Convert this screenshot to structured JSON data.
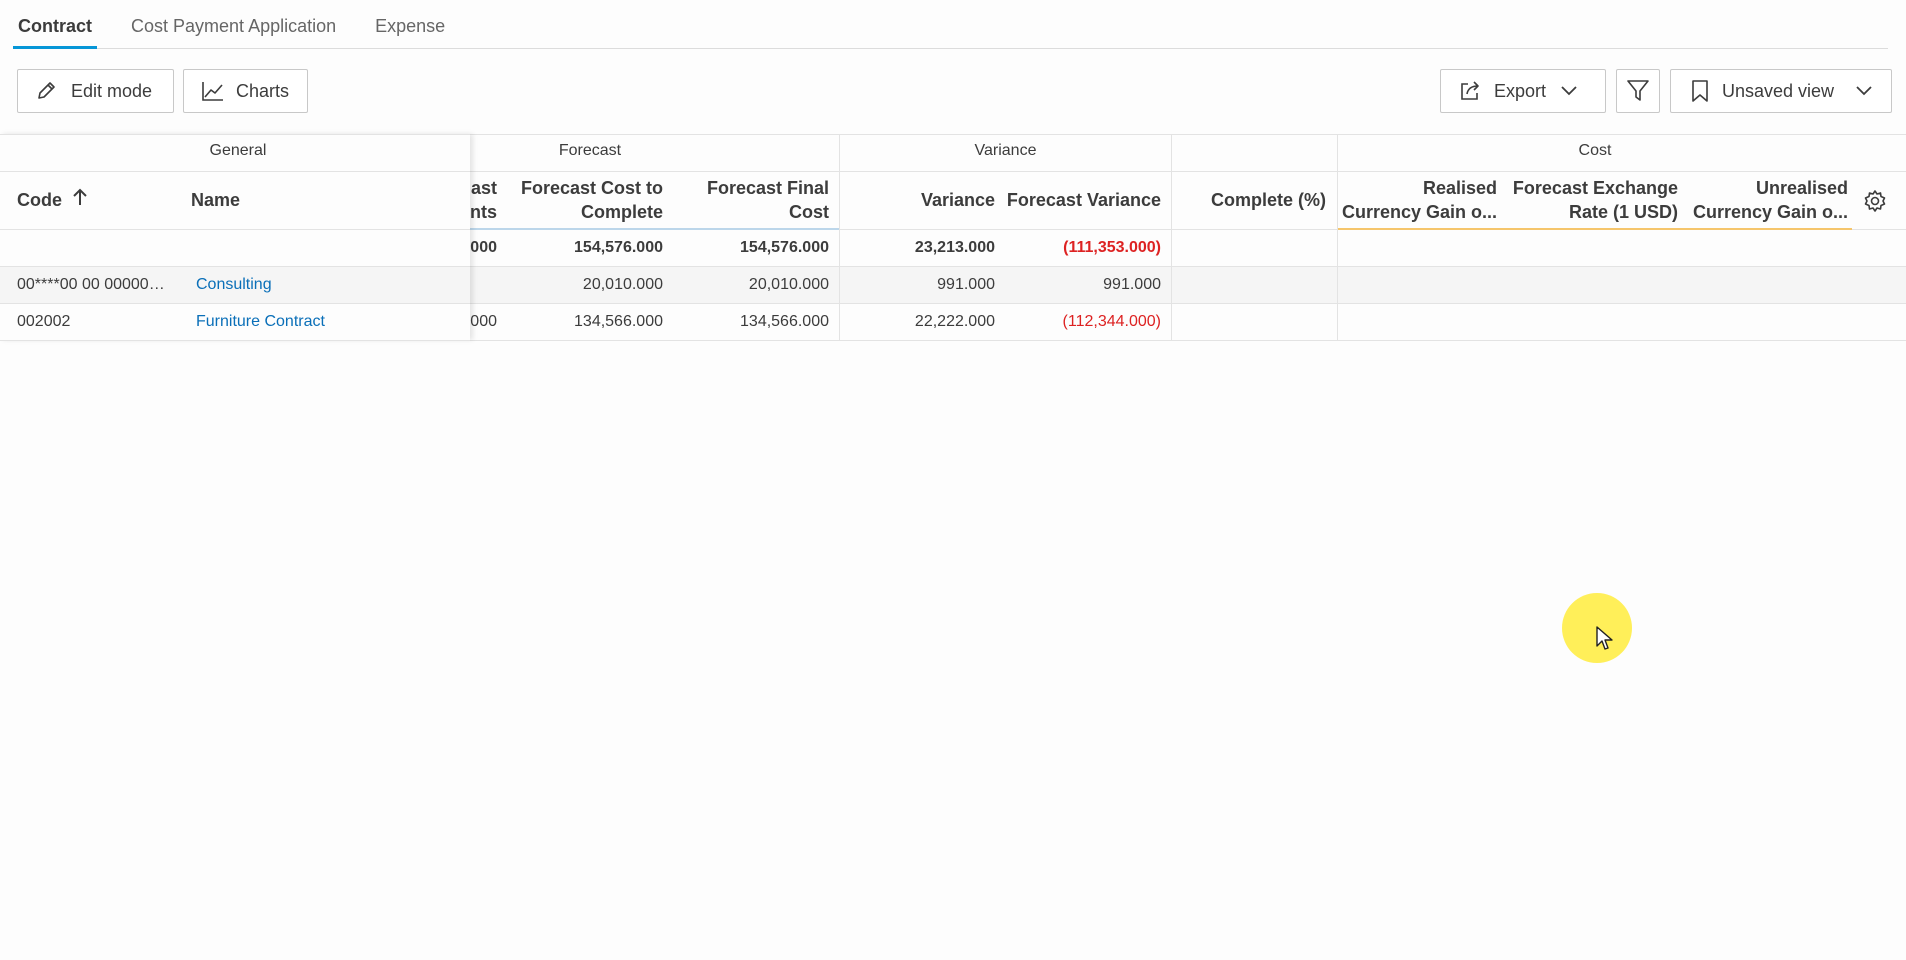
{
  "tabs": [
    {
      "label": "Contract",
      "active": true
    },
    {
      "label": "Cost Payment Application",
      "active": false
    },
    {
      "label": "Expense",
      "active": false
    }
  ],
  "toolbar": {
    "edit_label": "Edit mode",
    "charts_label": "Charts",
    "export_label": "Export",
    "view_label": "Unsaved view"
  },
  "groups": {
    "general": "General",
    "forecast": "Forecast",
    "variance": "Variance",
    "cost": "Cost"
  },
  "columns": {
    "code": "Code",
    "name": "Name",
    "forecast_adjustments_partial_1": "ast",
    "forecast_adjustments_partial_2": "nts",
    "forecast_cost_to_complete_1": "Forecast Cost to",
    "forecast_cost_to_complete_2": "Complete",
    "forecast_final_cost_1": "Forecast Final",
    "forecast_final_cost_2": "Cost",
    "variance": "Variance",
    "forecast_variance": "Forecast Variance",
    "complete_pct": "Complete (%)",
    "realised_1": "Realised",
    "realised_2": "Currency Gain o...",
    "fx_rate_1": "Forecast Exchange",
    "fx_rate_2": "Rate (1 USD)",
    "unrealised_1": "Unrealised",
    "unrealised_2": "Currency Gain o..."
  },
  "totals": {
    "forecast_adjustments_partial": "000",
    "forecast_cost_to_complete": "154,576.000",
    "forecast_final_cost": "154,576.000",
    "variance": "23,213.000",
    "forecast_variance": "(111,353.000)"
  },
  "rows": [
    {
      "code": "00****00 00 000002...",
      "name": "Consulting",
      "forecast_adjustments_partial": "",
      "forecast_cost_to_complete": "20,010.000",
      "forecast_final_cost": "20,010.000",
      "variance": "991.000",
      "forecast_variance": "991.000"
    },
    {
      "code": "002002",
      "name": "Furniture Contract",
      "forecast_adjustments_partial": "000",
      "forecast_cost_to_complete": "134,566.000",
      "forecast_final_cost": "134,566.000",
      "variance": "22,222.000",
      "forecast_variance": "(112,344.000)"
    }
  ],
  "colors": {
    "accent": "#0696d7",
    "negative": "#dd2222",
    "link": "#0a6fb8",
    "cursor_highlight": "#ffec3c"
  }
}
